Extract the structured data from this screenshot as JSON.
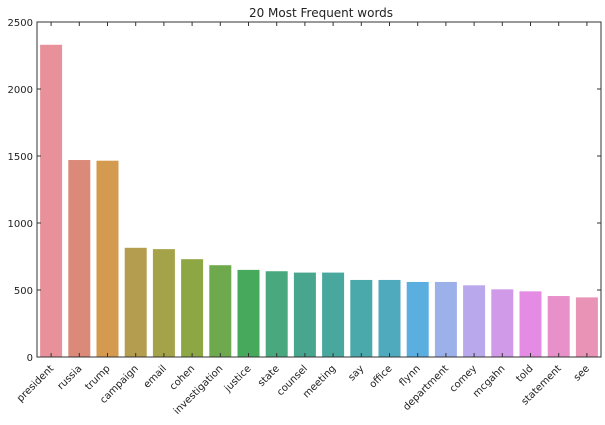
{
  "chart_data": {
    "type": "bar",
    "title": "20 Most Frequent words",
    "xlabel": "",
    "ylabel": "",
    "ylim": [
      0,
      2500
    ],
    "yticks": [
      0,
      500,
      1000,
      1500,
      2000,
      2500
    ],
    "grid": false,
    "categories": [
      "president",
      "russia",
      "trump",
      "campaign",
      "email",
      "cohen",
      "investigation",
      "justice",
      "state",
      "counsel",
      "meeting",
      "say",
      "office",
      "flynn",
      "department",
      "comey",
      "mcgahn",
      "told",
      "statement",
      "see"
    ],
    "values": [
      2330,
      1470,
      1465,
      815,
      805,
      730,
      685,
      650,
      640,
      630,
      630,
      575,
      575,
      560,
      560,
      535,
      505,
      490,
      455,
      445
    ],
    "colors": [
      "#e8919b",
      "#db8a7a",
      "#d49a4f",
      "#b59d4f",
      "#a4a349",
      "#8ea745",
      "#6fa94d",
      "#47a95b",
      "#4aa87f",
      "#49a68e",
      "#49a89e",
      "#4aa9ab",
      "#4eaabc",
      "#5aaee0",
      "#9cb1ea",
      "#b9a8eb",
      "#d09ae9",
      "#e48ce4",
      "#e890c9",
      "#e993b6"
    ]
  }
}
